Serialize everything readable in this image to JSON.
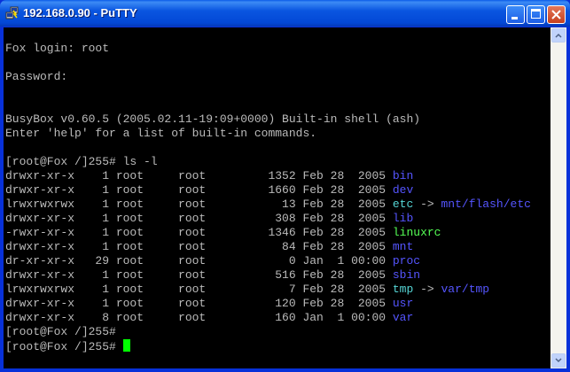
{
  "window": {
    "title": "192.168.0.90 - PuTTY",
    "icon": "putty-computers-icon"
  },
  "controls": {
    "minimize": "minimize-icon",
    "maximize": "maximize-icon",
    "close": "close-icon"
  },
  "colors": {
    "text": "#bbbbbb",
    "dir": "#5555ff",
    "link": "#55d5d5",
    "exec": "#55ff55",
    "cursor": "#00ff00"
  },
  "terminal": {
    "lines": [
      [],
      [
        {
          "t": "Fox login: root"
        }
      ],
      [],
      [
        {
          "t": "Password:"
        }
      ],
      [],
      [],
      [
        {
          "t": "BusyBox v0.60.5 (2005.02.11-19:09+0000) Built-in shell (ash)"
        }
      ],
      [
        {
          "t": "Enter 'help' for a list of built-in commands."
        }
      ],
      [],
      [
        {
          "t": "[root@Fox /]255# ls -l"
        }
      ],
      [
        {
          "t": "drwxr-xr-x    1 root     root         1352 Feb 28  2005 "
        },
        {
          "t": "bin",
          "c": "dir"
        }
      ],
      [
        {
          "t": "drwxr-xr-x    1 root     root         1660 Feb 28  2005 "
        },
        {
          "t": "dev",
          "c": "dir"
        }
      ],
      [
        {
          "t": "lrwxrwxrwx    1 root     root           13 Feb 28  2005 "
        },
        {
          "t": "etc",
          "c": "link"
        },
        {
          "t": " -> "
        },
        {
          "t": "mnt/flash/etc",
          "c": "dir"
        }
      ],
      [
        {
          "t": "drwxr-xr-x    1 root     root          308 Feb 28  2005 "
        },
        {
          "t": "lib",
          "c": "dir"
        }
      ],
      [
        {
          "t": "-rwxr-xr-x    1 root     root         1346 Feb 28  2005 "
        },
        {
          "t": "linuxrc",
          "c": "exec"
        }
      ],
      [
        {
          "t": "drwxr-xr-x    1 root     root           84 Feb 28  2005 "
        },
        {
          "t": "mnt",
          "c": "dir"
        }
      ],
      [
        {
          "t": "dr-xr-xr-x   29 root     root            0 Jan  1 00:00 "
        },
        {
          "t": "proc",
          "c": "dir"
        }
      ],
      [
        {
          "t": "drwxr-xr-x    1 root     root          516 Feb 28  2005 "
        },
        {
          "t": "sbin",
          "c": "dir"
        }
      ],
      [
        {
          "t": "lrwxrwxrwx    1 root     root            7 Feb 28  2005 "
        },
        {
          "t": "tmp",
          "c": "link"
        },
        {
          "t": " -> "
        },
        {
          "t": "var/tmp",
          "c": "dir"
        }
      ],
      [
        {
          "t": "drwxr-xr-x    1 root     root          120 Feb 28  2005 "
        },
        {
          "t": "usr",
          "c": "dir"
        }
      ],
      [
        {
          "t": "drwxr-xr-x    8 root     root          160 Jan  1 00:00 "
        },
        {
          "t": "var",
          "c": "dir"
        }
      ],
      [
        {
          "t": "[root@Fox /]255# "
        }
      ],
      [
        {
          "t": "[root@Fox /]255# "
        },
        {
          "cursor": true
        }
      ]
    ]
  }
}
